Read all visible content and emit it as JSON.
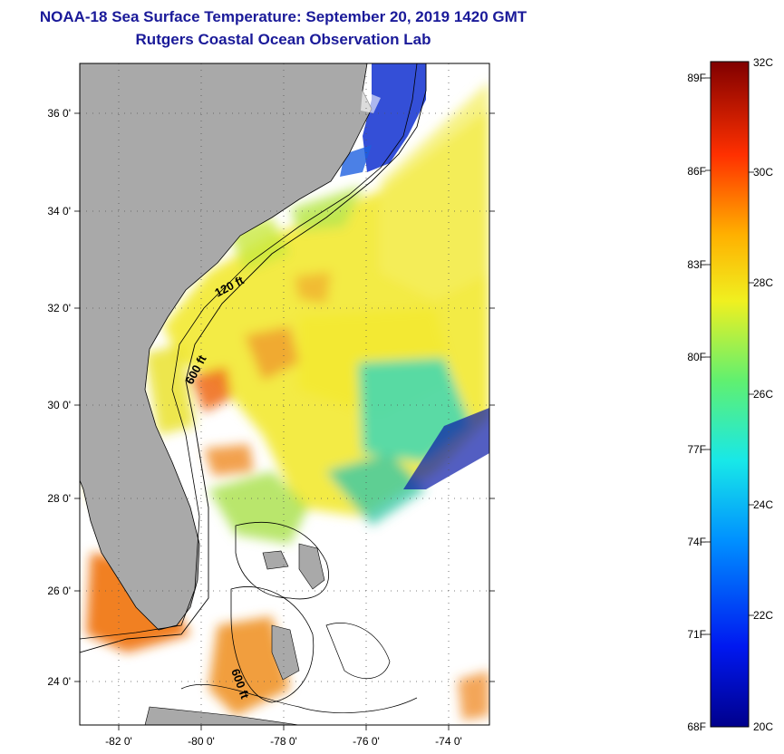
{
  "title": {
    "line1": "NOAA-18 Sea Surface Temperature:  September 20, 2019 1420 GMT",
    "line2": "Rutgers Coastal Ocean Observation Lab"
  },
  "map": {
    "x_ticks": [
      "-82 0'",
      "-80 0'",
      "-78 0'",
      "-76 0'",
      "-74 0'"
    ],
    "y_ticks": [
      "24 0'",
      "26 0'",
      "28 0'",
      "30 0'",
      "32 0'",
      "34 0'",
      "36 0'"
    ],
    "depth_labels": [
      "120 ft",
      "600 ft",
      "600 ft"
    ],
    "colors": {
      "land": "#a9a9a9",
      "cloud": "#ffffff",
      "yellow_water": "#f2e930",
      "warm_water": "#f08a20",
      "cool_water": "#3ad8b8",
      "cold_water": "#1030d0"
    }
  },
  "colorbar": {
    "fahrenheit_labels": [
      "89F",
      "86F",
      "83F",
      "80F",
      "77F",
      "74F",
      "71F",
      "68F"
    ],
    "celsius_labels": [
      "32C",
      "30C",
      "28C",
      "26C",
      "24C",
      "22C",
      "20C"
    ]
  }
}
